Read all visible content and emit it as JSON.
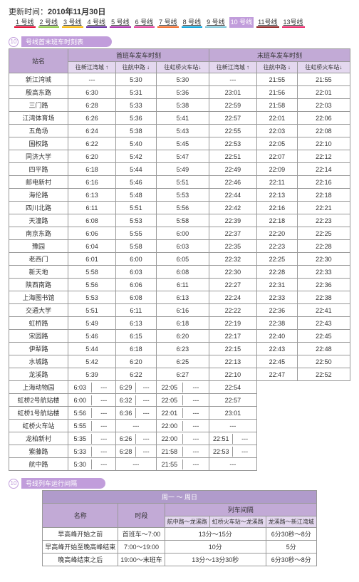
{
  "update_label": "更新时间：",
  "update_date": "2010年11月30日",
  "line_nav": [
    "1 号线",
    "2 号线",
    "3 号线",
    "4 号线",
    "5 号线",
    "6 号线",
    "7 号线",
    "8 号线",
    "9 号线",
    "10 号线",
    "11号线",
    "13号线"
  ],
  "line_nav_u_colors": [
    "#e2002a",
    "#8cc63f",
    "#f7b500",
    "#5f259f",
    "#a626aa",
    "#e03997",
    "#f26522",
    "#009fda",
    "#7ac5d8",
    "#c19ddb",
    "#8b1a1a",
    "#e91e63"
  ],
  "active_line_index": 9,
  "section1_title": "号线首末班车时刻表",
  "section1_num": "10",
  "timetable": {
    "head_top": [
      "站名",
      "首班车发车时刻",
      "末班车发车时刻"
    ],
    "head_sub": [
      "往新江湾城 ↑",
      "往航中路 ↓",
      "往虹桥火车站↓",
      "往新江湾城 ↑",
      "往航中路 ↓",
      "往虹桥火车站↓"
    ],
    "rows": [
      [
        "新江湾城",
        "---",
        "5:30",
        "5:30",
        "---",
        "21:55",
        "21:55"
      ],
      [
        "殷高东路",
        "6:30",
        "5:31",
        "5:36",
        "23:01",
        "21:56",
        "22:01"
      ],
      [
        "三门路",
        "6:28",
        "5:33",
        "5:38",
        "22:59",
        "21:58",
        "22:03"
      ],
      [
        "江湾体育场",
        "6:26",
        "5:36",
        "5:41",
        "22:57",
        "22:01",
        "22:06"
      ],
      [
        "五角场",
        "6:24",
        "5:38",
        "5:43",
        "22:55",
        "22:03",
        "22:08"
      ],
      [
        "国权路",
        "6:22",
        "5:40",
        "5:45",
        "22:53",
        "22:05",
        "22:10"
      ],
      [
        "同济大学",
        "6:20",
        "5:42",
        "5:47",
        "22:51",
        "22:07",
        "22:12"
      ],
      [
        "四平路",
        "6:18",
        "5:44",
        "5:49",
        "22:49",
        "22:09",
        "22:14"
      ],
      [
        "邮电新村",
        "6:16",
        "5:46",
        "5:51",
        "22:46",
        "22:11",
        "22:16"
      ],
      [
        "海伦路",
        "6:13",
        "5:48",
        "5:53",
        "22:44",
        "22:13",
        "22:18"
      ],
      [
        "四川北路",
        "6:11",
        "5:51",
        "5:56",
        "22:42",
        "22:16",
        "22:21"
      ],
      [
        "天潼路",
        "6:08",
        "5:53",
        "5:58",
        "22:39",
        "22:18",
        "22:23"
      ],
      [
        "南京东路",
        "6:06",
        "5:55",
        "6:00",
        "22:37",
        "22:20",
        "22:25"
      ],
      [
        "豫园",
        "6:04",
        "5:58",
        "6:03",
        "22:35",
        "22:23",
        "22:28"
      ],
      [
        "老西门",
        "6:01",
        "6:00",
        "6:05",
        "22:32",
        "22:25",
        "22:30"
      ],
      [
        "新天地",
        "5:58",
        "6:03",
        "6:08",
        "22:30",
        "22:28",
        "22:33"
      ],
      [
        "陕西南路",
        "5:56",
        "6:06",
        "6:11",
        "22:27",
        "22:31",
        "22:36"
      ],
      [
        "上海图书馆",
        "5:53",
        "6:08",
        "6:13",
        "22:24",
        "22:33",
        "22:38"
      ],
      [
        "交通大学",
        "5:51",
        "6:11",
        "6:16",
        "22:22",
        "22:36",
        "22:41"
      ],
      [
        "虹桥路",
        "5:49",
        "6:13",
        "6:18",
        "22:19",
        "22:38",
        "22:43"
      ],
      [
        "宋园路",
        "5:46",
        "6:15",
        "6:20",
        "22:17",
        "22:40",
        "22:45"
      ],
      [
        "伊犁路",
        "5:44",
        "6:18",
        "6:23",
        "22:15",
        "22:43",
        "22:48"
      ],
      [
        "水城路",
        "5:42",
        "6:20",
        "6:25",
        "22:13",
        "22:45",
        "22:50"
      ],
      [
        "龙溪路",
        "5:39",
        "6:22",
        "6:27",
        "22:10",
        "22:47",
        "22:52"
      ],
      [
        "上海动物园",
        "6:03",
        "---",
        "6:29",
        "---",
        "22:05",
        "---",
        "22:54"
      ],
      [
        "虹桥2号航站楼",
        "6:00",
        "---",
        "6:32",
        "---",
        "22:05",
        "---",
        "22:57"
      ],
      [
        "虹桥1号航站楼",
        "5:56",
        "---",
        "6:36",
        "---",
        "22:01",
        "---",
        "23:01"
      ],
      [
        "虹桥火车站",
        "5:55",
        "---",
        "---",
        "---",
        "22:00",
        "---",
        "---"
      ],
      [
        "龙柏新村",
        "5:35",
        "---",
        "6:26",
        "---",
        "22:00",
        "---",
        "22:51",
        "---"
      ],
      [
        "紫藤路",
        "5:33",
        "---",
        "6:28",
        "---",
        "21:58",
        "---",
        "22:53",
        "---"
      ],
      [
        "航中路",
        "5:30",
        "---",
        "---",
        "---",
        "21:55",
        "---",
        "---",
        "---"
      ]
    ]
  },
  "section2_title": "号线列车运行间隔",
  "section2_num": "10",
  "interval": {
    "head_top": "周一 ～ 周日",
    "head_row1": [
      "名称",
      "时段",
      "列车间隔"
    ],
    "head_row2": [
      "航中路～龙溪路",
      "虹桥火车站～龙溪路",
      "龙溪路～新江湾城"
    ],
    "rows": [
      [
        "早高峰开始之前",
        "首班车～7:00",
        "13分～15分",
        "",
        "6分30秒～8分"
      ],
      [
        "早高峰开始至晚高峰结束",
        "7:00～19:00",
        "10分",
        "",
        "5分"
      ],
      [
        "晚高峰结束之后",
        "19:00～末班车",
        "13分～13分30秒",
        "",
        "6分30秒～8分"
      ]
    ]
  }
}
